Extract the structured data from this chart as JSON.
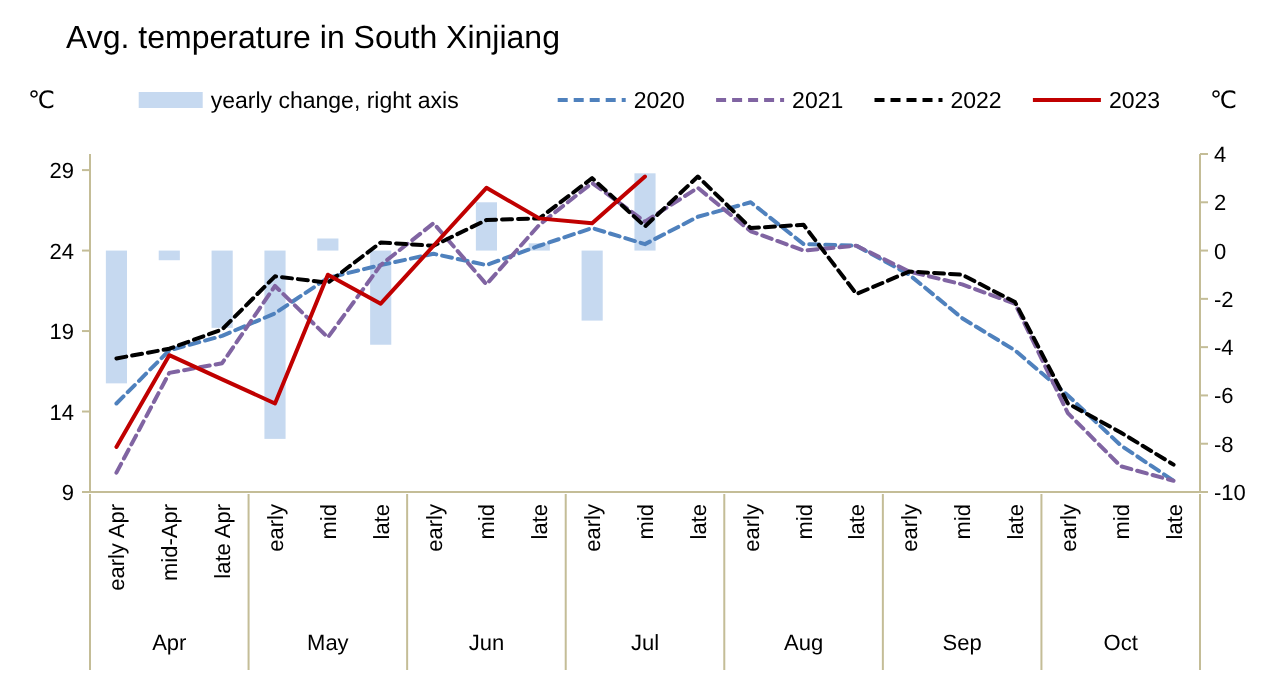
{
  "chart_data": {
    "type": "line",
    "title": "Avg. temperature in South Xinjiang",
    "ylabel": "℃",
    "y2label": "℃",
    "categories": [
      "early Apr",
      "mid-Apr",
      "late Apr",
      "early",
      "mid",
      "late",
      "early",
      "mid",
      "late",
      "early",
      "mid",
      "late",
      "early",
      "mid",
      "late",
      "early",
      "mid",
      "late",
      "early",
      "mid",
      "late"
    ],
    "annotations": [
      "Apr",
      "May",
      "Jun",
      "Jul",
      "Aug",
      "Sep",
      "Oct"
    ],
    "ylim": [
      9,
      30
    ],
    "yticks": [
      9,
      14,
      19,
      24,
      29
    ],
    "y2lim": [
      -10,
      4
    ],
    "y2ticks": [
      -10,
      -8,
      -6,
      -4,
      -2,
      0,
      2,
      4
    ],
    "legend": "top",
    "grid": false,
    "marker": "none",
    "series": [
      {
        "name": "yearly change, right axis",
        "type": "bar",
        "axis": "y2",
        "color": "#c6d9f0",
        "values": [
          -5.5,
          -0.4,
          -3.2,
          -7.8,
          0.5,
          -3.9,
          null,
          2.0,
          0.3,
          -2.9,
          3.2,
          null,
          null,
          null,
          null,
          null,
          null,
          null,
          null,
          null,
          null
        ]
      },
      {
        "name": "2020",
        "color": "#4f81bd",
        "line_style": "dashed",
        "values": [
          14.5,
          17.8,
          18.7,
          20.1,
          22.3,
          23.1,
          23.8,
          23.1,
          24.3,
          25.4,
          24.4,
          26.1,
          27.0,
          24.4,
          24.3,
          22.5,
          19.8,
          17.8,
          15.0,
          11.9,
          9.7
        ]
      },
      {
        "name": "2021",
        "color": "#8064a2",
        "line_style": "dashed",
        "values": [
          10.2,
          16.4,
          17.0,
          21.8,
          18.6,
          23.1,
          25.7,
          21.9,
          25.6,
          28.2,
          25.8,
          27.9,
          25.2,
          24.0,
          24.3,
          22.7,
          21.9,
          20.7,
          13.9,
          10.6,
          9.7
        ]
      },
      {
        "name": "2022",
        "color": "#000000",
        "line_style": "dashed",
        "values": [
          17.3,
          17.9,
          19.1,
          22.4,
          22.0,
          24.5,
          24.3,
          25.9,
          26.0,
          28.5,
          25.5,
          28.6,
          25.4,
          25.6,
          21.3,
          22.7,
          22.5,
          20.8,
          14.5,
          12.7,
          10.7
        ]
      },
      {
        "name": "2023",
        "color": "#c00000",
        "line_style": "solid",
        "values": [
          11.8,
          17.5,
          16.0,
          14.5,
          22.5,
          20.7,
          24.3,
          27.9,
          26.0,
          25.7,
          28.6,
          null,
          null,
          null,
          null,
          null,
          null,
          null,
          null,
          null,
          null
        ]
      }
    ]
  }
}
